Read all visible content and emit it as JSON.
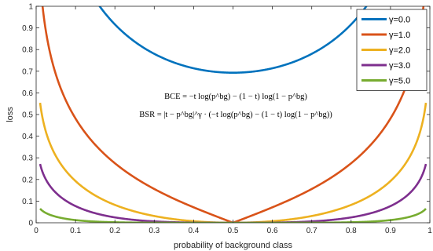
{
  "chart_data": {
    "type": "line",
    "title": "",
    "xlabel": "probability of background class",
    "ylabel": "loss",
    "xlim": [
      0,
      1
    ],
    "ylim": [
      0,
      1
    ],
    "xticks": [
      "0",
      "0.1",
      "0.2",
      "0.3",
      "0.4",
      "0.5",
      "0.6",
      "0.7",
      "0.8",
      "0.9",
      "1"
    ],
    "yticks": [
      "0",
      "0.1",
      "0.2",
      "0.3",
      "0.4",
      "0.5",
      "0.6",
      "0.7",
      "0.8",
      "0.9",
      "1"
    ],
    "grid": false,
    "legend_placement": "top-right",
    "formulas": [
      "BCE = −t log(p^bg) − (1 − t) log(1 − p^bg)",
      "BSR = |t − p^bg|^γ · (−t log(p^bg) − (1 − t) log(1 − p^bg))"
    ],
    "series": [
      {
        "name": "γ=0.0",
        "gamma": 0.0,
        "color": "#0072BD"
      },
      {
        "name": "γ=1.0",
        "gamma": 1.0,
        "color": "#D95319"
      },
      {
        "name": "γ=2.0",
        "gamma": 2.0,
        "color": "#EDB120"
      },
      {
        "name": "γ=3.0",
        "gamma": 3.0,
        "color": "#7E2F8E"
      },
      {
        "name": "γ=5.0",
        "gamma": 5.0,
        "color": "#77AC30"
      }
    ],
    "x_range_plotted": [
      0.01,
      0.99
    ],
    "target_t": 0.5
  }
}
